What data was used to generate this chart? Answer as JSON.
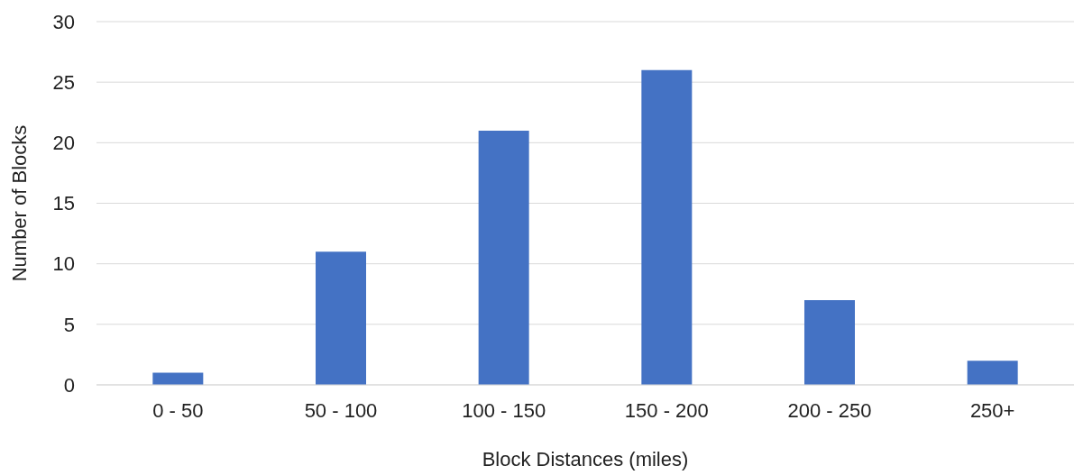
{
  "chart_data": {
    "type": "bar",
    "xlabel": "Block Distances (miles)",
    "ylabel": "Number of Blocks",
    "categories": [
      "0 - 50",
      "50 - 100",
      "100 - 150",
      "150 - 200",
      "200 - 250",
      "250+"
    ],
    "values": [
      1,
      11,
      21,
      26,
      7,
      2
    ],
    "color": "#4472c4",
    "ylim": [
      0,
      30
    ],
    "yticks": [
      0,
      5,
      10,
      15,
      20,
      25,
      30
    ],
    "grid": "y"
  }
}
